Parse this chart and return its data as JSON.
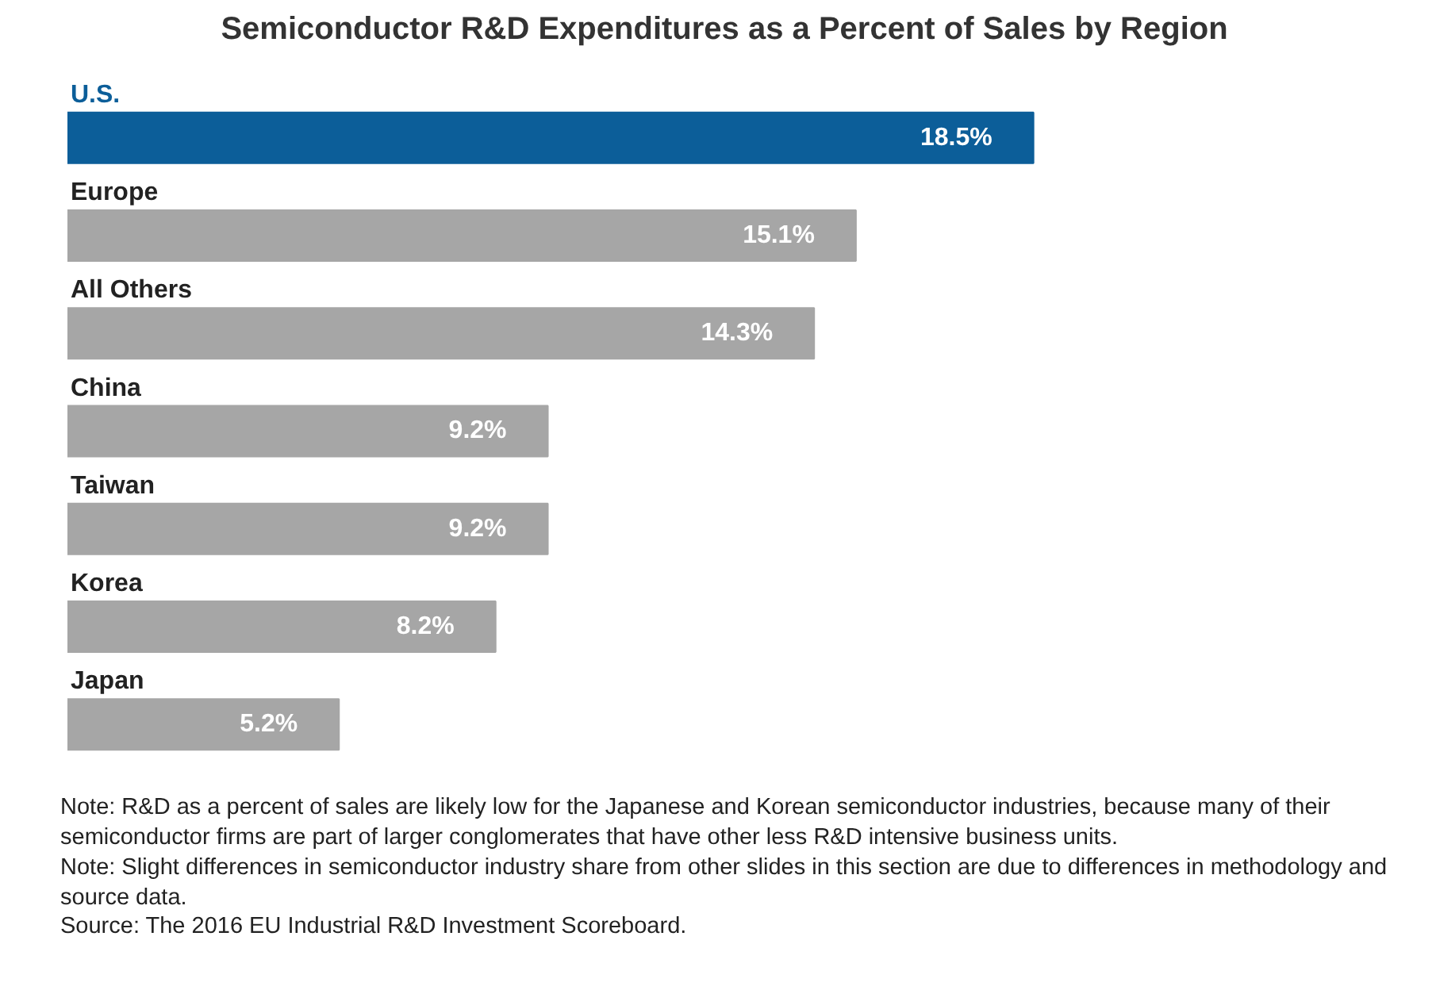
{
  "chart_data": {
    "type": "bar",
    "orientation": "horizontal",
    "title": "Semiconductor R&D Expenditures as a Percent of Sales by Region",
    "categories": [
      "U.S.",
      "Europe",
      "All Others",
      "China",
      "Taiwan",
      "Korea",
      "Japan"
    ],
    "values": [
      18.5,
      15.1,
      14.3,
      9.2,
      9.2,
      8.2,
      5.2
    ],
    "value_labels": [
      "18.5%",
      "15.1%",
      "14.3%",
      "9.2%",
      "9.2%",
      "8.2%",
      "5.2%"
    ],
    "colors": [
      "#0c5e99",
      "#a6a6a6",
      "#a6a6a6",
      "#a6a6a6",
      "#a6a6a6",
      "#a6a6a6",
      "#a6a6a6"
    ],
    "grid": false,
    "annotations": [
      "Note: R&D as a percent of sales are likely low for the Japanese and Korean semiconductor industries, because many of their semiconductor firms are part of larger conglomerates that have other less R&D intensive business units.",
      "Note: Slight differences in semiconductor industry share from other slides in this section are due to differences in methodology and source data.",
      "Source: The 2016 EU Industrial R&D Investment Scoreboard."
    ]
  }
}
